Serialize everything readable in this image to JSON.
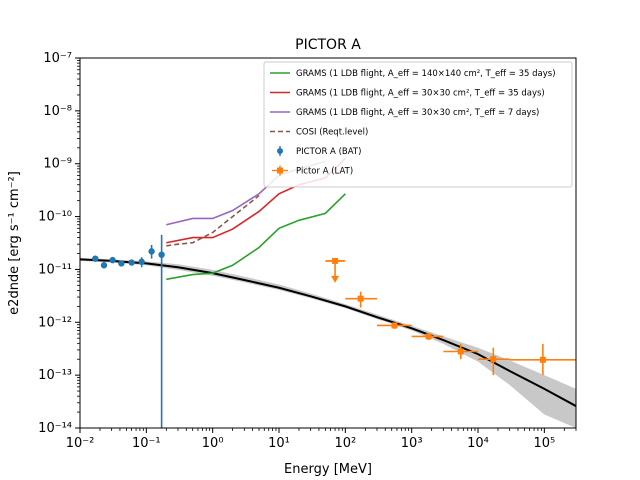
{
  "chart_data": {
    "type": "scatter",
    "title": "PICTOR A",
    "xlabel": "Energy [MeV]",
    "ylabel": "e2dnde [erg s⁻¹ cm⁻²]",
    "xscale": "log",
    "yscale": "log",
    "xlim": [
      0.01,
      300000
    ],
    "ylim": [
      1e-14,
      1e-07
    ],
    "grid": false,
    "legend_position": "top-right",
    "x_ticks": [
      {
        "value": 0.01,
        "label": "10⁻²"
      },
      {
        "value": 0.1,
        "label": "10⁻¹"
      },
      {
        "value": 1,
        "label": "10⁰"
      },
      {
        "value": 10,
        "label": "10¹"
      },
      {
        "value": 100,
        "label": "10²"
      },
      {
        "value": 1000,
        "label": "10³"
      },
      {
        "value": 10000,
        "label": "10⁴"
      },
      {
        "value": 100000,
        "label": "10⁵"
      }
    ],
    "y_ticks": [
      {
        "value": 1e-14,
        "label": "10⁻¹⁴"
      },
      {
        "value": 1e-13,
        "label": "10⁻¹³"
      },
      {
        "value": 1e-12,
        "label": "10⁻¹²"
      },
      {
        "value": 1e-11,
        "label": "10⁻¹¹"
      },
      {
        "value": 1e-10,
        "label": "10⁻¹⁰"
      },
      {
        "value": 1e-09,
        "label": "10⁻⁹"
      },
      {
        "value": 1e-08,
        "label": "10⁻⁸"
      },
      {
        "value": 1e-07,
        "label": "10⁻⁷"
      }
    ],
    "series": [
      {
        "name": "GRAMS (1 LDB flight, A_eff = 140×140 cm², T_eff = 35 days)",
        "legend_label": "GRAMS (1 LDB flight, A_eff = 140×140 cm², T_eff = 35 days)",
        "kind": "line",
        "color": "#2ca02c",
        "x": [
          0.2,
          0.5,
          1,
          2,
          5,
          10,
          20,
          50,
          100
        ],
        "y": [
          6.5e-12,
          8e-12,
          8.5e-12,
          1.2e-11,
          2.6e-11,
          6e-11,
          8.5e-11,
          1.15e-10,
          2.7e-10
        ]
      },
      {
        "name": "GRAMS (1 LDB flight, A_eff = 30×30 cm², T_eff = 35 days)",
        "legend_label": "GRAMS (1 LDB flight, A_eff = 30×30 cm², T_eff = 35 days)",
        "kind": "line",
        "color": "#d62728",
        "x": [
          0.2,
          0.5,
          1,
          2,
          5,
          10,
          20,
          50,
          100
        ],
        "y": [
          3.2e-11,
          4e-11,
          4e-11,
          5.8e-11,
          1.25e-10,
          2.7e-10,
          4e-10,
          5.4e-10,
          1.25e-09
        ]
      },
      {
        "name": "GRAMS (1 LDB flight, A_eff = 30×30 cm², T_eff = 7 days)",
        "legend_label": "GRAMS (1 LDB flight, A_eff = 30×30 cm², T_eff = 7 days)",
        "kind": "line",
        "color": "#9467bd",
        "x": [
          0.2,
          0.5,
          1,
          2,
          5,
          10,
          20,
          50
        ],
        "y": [
          7e-11,
          9.2e-11,
          9.2e-11,
          1.3e-10,
          2.7e-10,
          6e-10,
          8e-10,
          1.1e-09
        ]
      },
      {
        "name": "COSI (Reqt.level)",
        "legend_label": "COSI (Reqt.level)",
        "kind": "dashed-line",
        "color": "#8c564b",
        "x": [
          0.2,
          0.3,
          0.5,
          1,
          2,
          5
        ],
        "y": [
          2.8e-11,
          3e-11,
          3.2e-11,
          5e-11,
          1e-10,
          2.5e-10
        ]
      },
      {
        "name": "PICTOR A (BAT)",
        "legend_label": "PICTOR A (BAT)",
        "kind": "errorbar",
        "color": "#1f77b4",
        "points": [
          {
            "x": 0.017,
            "y": 1.6e-11,
            "ylo": 1.45e-11,
            "yhi": 1.75e-11
          },
          {
            "x": 0.023,
            "y": 1.2e-11,
            "ylo": 1.05e-11,
            "yhi": 1.35e-11
          },
          {
            "x": 0.031,
            "y": 1.5e-11,
            "ylo": 1.35e-11,
            "yhi": 1.65e-11
          },
          {
            "x": 0.042,
            "y": 1.3e-11,
            "ylo": 1.15e-11,
            "yhi": 1.45e-11
          },
          {
            "x": 0.06,
            "y": 1.35e-11,
            "ylo": 1.2e-11,
            "yhi": 1.5e-11
          },
          {
            "x": 0.085,
            "y": 1.4e-11,
            "ylo": 1.1e-11,
            "yhi": 1.7e-11
          },
          {
            "x": 0.12,
            "y": 2.2e-11,
            "ylo": 1.6e-11,
            "yhi": 2.9e-11
          },
          {
            "x": 0.17,
            "y": 1.9e-11,
            "ylo": 1e-14,
            "yhi": 4.5e-11
          }
        ]
      },
      {
        "name": "Pictor A (LAT)",
        "legend_label": "Pictor A (LAT)",
        "kind": "errorbar",
        "color": "#ff7f0e",
        "points": [
          {
            "x": 70,
            "y": 1.45e-11,
            "xlo": 50,
            "xhi": 100,
            "upper_limit": true
          },
          {
            "x": 170,
            "y": 2.8e-12,
            "xlo": 100,
            "xhi": 300,
            "ylo": 1.9e-12,
            "yhi": 3.8e-12
          },
          {
            "x": 550,
            "y": 8.7e-13,
            "xlo": 300,
            "xhi": 1000,
            "ylo": 7.5e-13,
            "yhi": 1e-12
          },
          {
            "x": 1800,
            "y": 5.4e-13,
            "xlo": 1000,
            "xhi": 3000,
            "ylo": 4.6e-13,
            "yhi": 6.2e-13
          },
          {
            "x": 5500,
            "y": 2.8e-13,
            "xlo": 3000,
            "xhi": 10000,
            "ylo": 2e-13,
            "yhi": 3.9e-13
          },
          {
            "x": 17000,
            "y": 2e-13,
            "xlo": 10000,
            "xhi": 30000,
            "ylo": 1e-13,
            "yhi": 3.3e-13
          },
          {
            "x": 95000,
            "y": 1.95e-13,
            "xlo": 30000,
            "xhi": 300000,
            "ylo": 1e-13,
            "yhi": 3.9e-13
          }
        ]
      }
    ],
    "model_curve": {
      "color": "#000000",
      "x": [
        0.01,
        0.03,
        0.1,
        0.3,
        1,
        3,
        10,
        30,
        100,
        300,
        1000,
        3000,
        10000,
        30000,
        100000,
        300000
      ],
      "y": [
        1.55e-11,
        1.45e-11,
        1.3e-11,
        1.1e-11,
        8.5e-12,
        6.3e-12,
        4.5e-12,
        3.1e-12,
        2e-12,
        1.25e-12,
        7.7e-13,
        4.6e-13,
        2.5e-13,
        1.2e-13,
        5.5e-14,
        2.6e-14
      ]
    },
    "model_band": {
      "color": "#c8c8c8",
      "x": [
        0.01,
        0.03,
        0.1,
        0.3,
        1,
        3,
        10,
        30,
        100,
        300,
        1000,
        3000,
        10000,
        30000,
        100000,
        300000
      ],
      "ylo": [
        1.45e-11,
        1.35e-11,
        1.2e-11,
        9.8e-12,
        7.6e-12,
        5.7e-12,
        4.1e-12,
        2.85e-12,
        1.85e-12,
        1.15e-12,
        7e-13,
        3.9e-13,
        1.8e-13,
        6.5e-14,
        1.8e-14,
        1e-14
      ],
      "yhi": [
        1.65e-11,
        1.55e-11,
        1.42e-11,
        1.25e-11,
        9.8e-12,
        7.3e-12,
        5.2e-12,
        3.5e-12,
        2.2e-12,
        1.4e-12,
        8.6e-13,
        5.4e-13,
        3.3e-13,
        1.9e-13,
        1e-13,
        5.5e-14
      ]
    }
  }
}
